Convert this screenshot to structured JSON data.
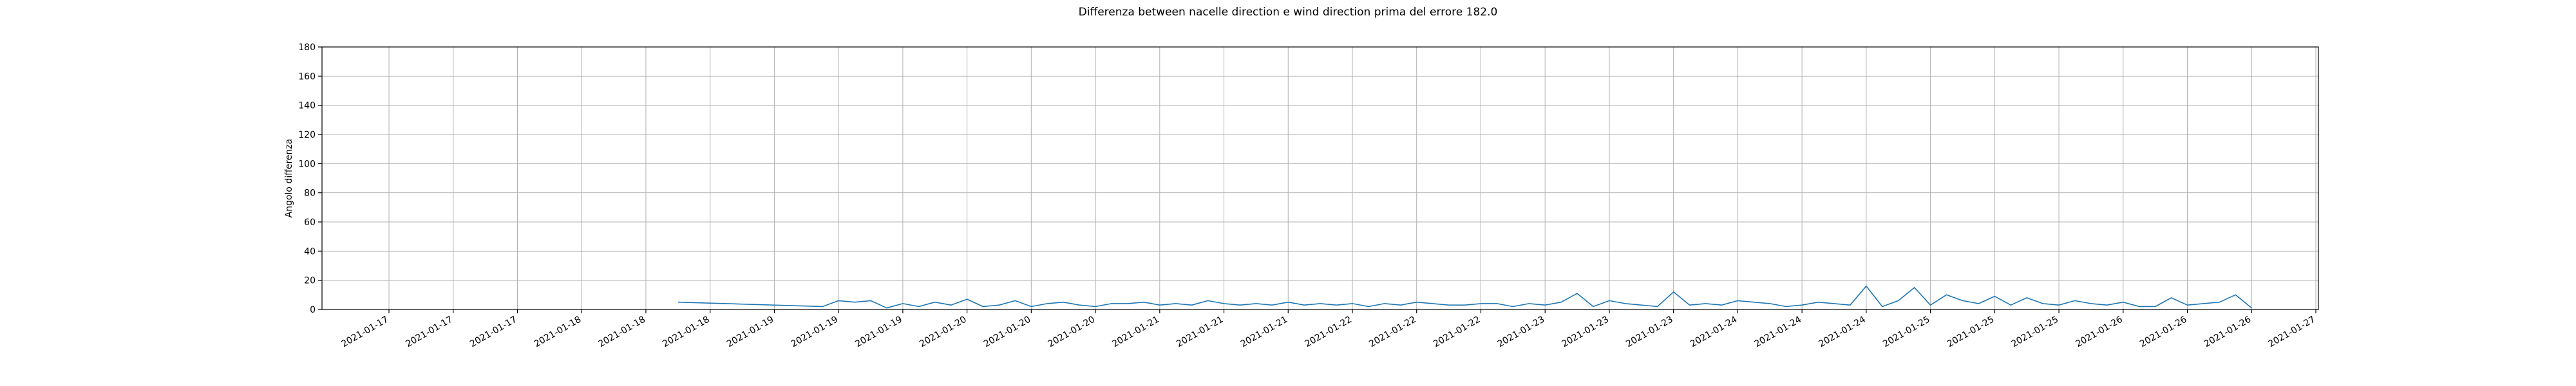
{
  "chart_data": {
    "type": "line",
    "title": "Differenza between nacelle direction e wind direction prima del errore 182.0",
    "xlabel": "",
    "ylabel": "Angolo differenza",
    "ylim": [
      0,
      180
    ],
    "yticks": [
      0,
      20,
      40,
      60,
      80,
      100,
      120,
      140,
      160,
      180
    ],
    "x_tick_labels": [
      "2021-01-17",
      "2021-01-17",
      "2021-01-17",
      "2021-01-18",
      "2021-01-18",
      "2021-01-18",
      "2021-01-19",
      "2021-01-19",
      "2021-01-19",
      "2021-01-20",
      "2021-01-20",
      "2021-01-20",
      "2021-01-21",
      "2021-01-21",
      "2021-01-21",
      "2021-01-22",
      "2021-01-22",
      "2021-01-22",
      "2021-01-23",
      "2021-01-23",
      "2021-01-23",
      "2021-01-24",
      "2021-01-24",
      "2021-01-24",
      "2021-01-25",
      "2021-01-25",
      "2021-01-25",
      "2021-01-26",
      "2021-01-26",
      "2021-01-26",
      "2021-01-27"
    ],
    "grid": true,
    "line_color": "#1f77b4",
    "series": [
      {
        "x": [
          "2021-01-18 12:00",
          "2021-01-19 06:00",
          "2021-01-19 08:00",
          "2021-01-19 10:00",
          "2021-01-19 12:00",
          "2021-01-19 14:00",
          "2021-01-19 16:00",
          "2021-01-19 18:00",
          "2021-01-19 20:00",
          "2021-01-19 22:00",
          "2021-01-20 00:00",
          "2021-01-20 02:00",
          "2021-01-20 04:00",
          "2021-01-20 06:00",
          "2021-01-20 08:00",
          "2021-01-20 10:00",
          "2021-01-20 12:00",
          "2021-01-20 14:00",
          "2021-01-20 16:00",
          "2021-01-20 18:00",
          "2021-01-20 20:00",
          "2021-01-20 22:00",
          "2021-01-21 00:00",
          "2021-01-21 02:00",
          "2021-01-21 04:00",
          "2021-01-21 06:00",
          "2021-01-21 08:00",
          "2021-01-21 10:00",
          "2021-01-21 12:00",
          "2021-01-21 14:00",
          "2021-01-21 16:00",
          "2021-01-21 18:00",
          "2021-01-21 20:00",
          "2021-01-21 22:00",
          "2021-01-22 00:00",
          "2021-01-22 02:00",
          "2021-01-22 04:00",
          "2021-01-22 06:00",
          "2021-01-22 08:00",
          "2021-01-22 10:00",
          "2021-01-22 12:00",
          "2021-01-22 14:00",
          "2021-01-22 16:00",
          "2021-01-22 18:00",
          "2021-01-22 20:00",
          "2021-01-22 22:00",
          "2021-01-23 00:00",
          "2021-01-23 02:00",
          "2021-01-23 04:00",
          "2021-01-23 06:00",
          "2021-01-23 08:00",
          "2021-01-23 10:00",
          "2021-01-23 12:00",
          "2021-01-23 14:00",
          "2021-01-23 16:00",
          "2021-01-23 18:00",
          "2021-01-23 20:00",
          "2021-01-23 22:00",
          "2021-01-24 00:00",
          "2021-01-24 02:00",
          "2021-01-24 04:00",
          "2021-01-24 06:00",
          "2021-01-24 08:00",
          "2021-01-24 10:00",
          "2021-01-24 12:00",
          "2021-01-24 14:00",
          "2021-01-24 16:00",
          "2021-01-24 18:00",
          "2021-01-24 20:00",
          "2021-01-24 22:00",
          "2021-01-25 00:00",
          "2021-01-25 02:00",
          "2021-01-25 04:00",
          "2021-01-25 06:00",
          "2021-01-25 08:00",
          "2021-01-25 10:00",
          "2021-01-25 12:00",
          "2021-01-25 14:00",
          "2021-01-25 16:00",
          "2021-01-25 18:00",
          "2021-01-25 20:00",
          "2021-01-25 22:00",
          "2021-01-26 00:00",
          "2021-01-26 02:00",
          "2021-01-26 04:00",
          "2021-01-26 06:00",
          "2021-01-26 08:00",
          "2021-01-26 10:00",
          "2021-01-26 12:00",
          "2021-01-26 14:00",
          "2021-01-26 16:00"
        ],
        "y": [
          5,
          2,
          6,
          5,
          6,
          1,
          4,
          2,
          5,
          3,
          7,
          2,
          3,
          6,
          2,
          4,
          5,
          3,
          2,
          4,
          4,
          5,
          3,
          4,
          3,
          6,
          4,
          3,
          4,
          3,
          5,
          3,
          4,
          3,
          4,
          2,
          4,
          3,
          5,
          4,
          3,
          3,
          4,
          4,
          2,
          4,
          3,
          5,
          11,
          2,
          6,
          4,
          3,
          2,
          12,
          3,
          4,
          3,
          6,
          5,
          4,
          2,
          3,
          5,
          4,
          3,
          16,
          2,
          6,
          15,
          3,
          10,
          6,
          4,
          9,
          3,
          8,
          4,
          3,
          6,
          4,
          3,
          5,
          2,
          2,
          8,
          3,
          4,
          5,
          10,
          1
        ]
      }
    ]
  }
}
